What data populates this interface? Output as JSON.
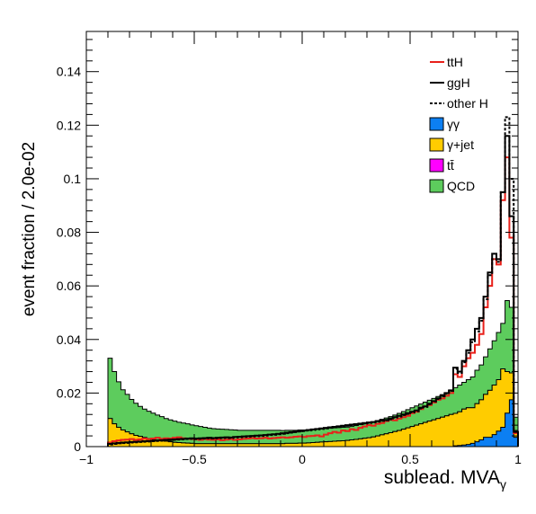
{
  "chart_data": {
    "type": "histogram",
    "xlabel": "sublead. MVA",
    "xlabel_sub": "γ",
    "ylabel": "event fraction / 2.0e-02",
    "xlim": [
      -1,
      1
    ],
    "ylim": [
      0,
      0.155
    ],
    "x_ticks": [
      {
        "v": -1,
        "label": "−1"
      },
      {
        "v": -0.5,
        "label": "−0.5"
      },
      {
        "v": 0,
        "label": "0"
      },
      {
        "v": 0.5,
        "label": "0.5"
      },
      {
        "v": 1,
        "label": "1"
      }
    ],
    "y_ticks": [
      {
        "v": 0,
        "label": "0"
      },
      {
        "v": 0.02,
        "label": "0.02"
      },
      {
        "v": 0.04,
        "label": "0.04"
      },
      {
        "v": 0.06,
        "label": "0.06"
      },
      {
        "v": 0.08,
        "label": "0.08"
      },
      {
        "v": 0.1,
        "label": "0.1"
      },
      {
        "v": 0.12,
        "label": "0.12"
      },
      {
        "v": 0.14,
        "label": "0.14"
      }
    ],
    "bin_width": 0.02,
    "x_start": -0.9,
    "stacked": [
      {
        "name": "γγ",
        "color": "#0c7ff2",
        "values": [
          0,
          0,
          0,
          0,
          0,
          0,
          0,
          0,
          0,
          0,
          0,
          0,
          0,
          0,
          0,
          0,
          0,
          0,
          0,
          0,
          0,
          0,
          0,
          0,
          0,
          0,
          0,
          0,
          0,
          0,
          0,
          0,
          0,
          0,
          0,
          0,
          0,
          0,
          0,
          0,
          0,
          0,
          0,
          0,
          0,
          0,
          0,
          0,
          0,
          0,
          0,
          0,
          0,
          0,
          0,
          0,
          0,
          0,
          0,
          0,
          0,
          0,
          0,
          0,
          0,
          0,
          0,
          0,
          0,
          0,
          0,
          0,
          0,
          0,
          0,
          0,
          0,
          0,
          0,
          0,
          0.0003,
          0.0004,
          0.0006,
          0.0008,
          0.0012,
          0.0018,
          0.0025,
          0.0035,
          0.0035,
          0.0045,
          0.0058,
          0.0072,
          0.0125,
          0.0175,
          0.0035
        ]
      },
      {
        "name": "γ+jet",
        "color": "#ffcc00",
        "values": [
          0.0105,
          0.0085,
          0.0072,
          0.0062,
          0.0055,
          0.0048,
          0.0042,
          0.0038,
          0.0034,
          0.003,
          0.0027,
          0.0024,
          0.0022,
          0.002,
          0.0018,
          0.0016,
          0.0015,
          0.0014,
          0.0013,
          0.0012,
          0.0011,
          0.0011,
          0.0011,
          0.0011,
          0.0011,
          0.0011,
          0.0011,
          0.0011,
          0.0011,
          0.0011,
          0.0011,
          0.0011,
          0.0011,
          0.0011,
          0.0011,
          0.0011,
          0.0011,
          0.0011,
          0.0011,
          0.0011,
          0.0011,
          0.0012,
          0.0012,
          0.0012,
          0.0013,
          0.0013,
          0.0014,
          0.0015,
          0.0016,
          0.0017,
          0.0018,
          0.0019,
          0.002,
          0.0021,
          0.0022,
          0.0023,
          0.0025,
          0.0027,
          0.0029,
          0.0031,
          0.0033,
          0.0036,
          0.004,
          0.0044,
          0.0048,
          0.0052,
          0.0056,
          0.006,
          0.0065,
          0.007,
          0.0075,
          0.008,
          0.0085,
          0.009,
          0.0095,
          0.01,
          0.0105,
          0.011,
          0.0115,
          0.012,
          0.0121,
          0.0126,
          0.0134,
          0.0137,
          0.0133,
          0.0142,
          0.015,
          0.016,
          0.0175,
          0.0185,
          0.0192,
          0.0218,
          0.0155,
          0.01,
          0.0025
        ]
      },
      {
        "name": "tt̄",
        "color": "#ff00ff",
        "values": [
          0,
          0,
          0,
          0,
          0,
          0,
          0,
          0,
          0,
          0,
          0,
          0,
          0,
          0,
          0,
          0,
          0,
          0,
          0,
          0,
          0,
          0,
          0,
          0,
          0,
          0,
          0,
          0,
          0,
          0,
          0,
          0,
          0,
          0,
          0,
          0,
          0,
          0,
          0,
          0,
          0,
          0,
          0,
          0,
          0,
          0,
          0,
          0,
          0,
          0,
          0,
          0,
          0,
          0,
          0,
          0,
          0,
          0,
          0,
          0,
          0,
          0,
          0,
          0,
          0,
          0,
          0,
          0,
          0,
          0,
          0,
          0,
          0,
          0,
          0,
          0,
          0,
          0,
          0,
          0,
          0,
          0,
          0,
          0,
          0,
          0,
          0,
          0,
          0,
          0,
          0,
          0,
          0,
          0,
          0
        ]
      },
      {
        "name": "QCD",
        "color": "#5dcc5d",
        "values": [
          0.0225,
          0.0195,
          0.017,
          0.015,
          0.014,
          0.0128,
          0.012,
          0.0112,
          0.0106,
          0.0102,
          0.0098,
          0.0094,
          0.009,
          0.0085,
          0.0082,
          0.0079,
          0.0076,
          0.0074,
          0.0072,
          0.0069,
          0.0067,
          0.0064,
          0.0061,
          0.0058,
          0.0056,
          0.0055,
          0.0054,
          0.0053,
          0.0052,
          0.0051,
          0.005,
          0.005,
          0.005,
          0.005,
          0.005,
          0.005,
          0.005,
          0.005,
          0.005,
          0.005,
          0.0049,
          0.0049,
          0.0049,
          0.0049,
          0.0049,
          0.0049,
          0.0049,
          0.0049,
          0.0049,
          0.0049,
          0.0049,
          0.005,
          0.005,
          0.005,
          0.005,
          0.005,
          0.0051,
          0.0052,
          0.0053,
          0.0054,
          0.0055,
          0.0056,
          0.0057,
          0.0058,
          0.0059,
          0.006,
          0.0062,
          0.0064,
          0.0066,
          0.0068,
          0.007,
          0.0072,
          0.0074,
          0.0076,
          0.0078,
          0.008,
          0.0082,
          0.0084,
          0.0086,
          0.0088,
          0.0096,
          0.01,
          0.01,
          0.0105,
          0.0115,
          0.0125,
          0.013,
          0.014,
          0.0155,
          0.0165,
          0.0176,
          0.017,
          0.0265,
          0.0245,
          0.005
        ]
      }
    ],
    "lines": [
      {
        "name": "ttH",
        "color": "#e8201a",
        "dash": "solid",
        "values": [
          0.0015,
          0.002,
          0.0023,
          0.0025,
          0.0026,
          0.0028,
          0.0025,
          0.0027,
          0.003,
          0.0028,
          0.003,
          0.0033,
          0.0029,
          0.0031,
          0.003,
          0.0033,
          0.0035,
          0.0031,
          0.003,
          0.0028,
          0.0027,
          0.0025,
          0.0028,
          0.0026,
          0.0025,
          0.0027,
          0.0024,
          0.0026,
          0.0028,
          0.0025,
          0.0027,
          0.0029,
          0.003,
          0.0032,
          0.003,
          0.0031,
          0.0033,
          0.003,
          0.0032,
          0.0033,
          0.0035,
          0.0033,
          0.0035,
          0.0037,
          0.0038,
          0.0036,
          0.0039,
          0.004,
          0.0042,
          0.0038,
          0.0045,
          0.005,
          0.0055,
          0.0052,
          0.006,
          0.0058,
          0.0065,
          0.0062,
          0.007,
          0.0075,
          0.008,
          0.0078,
          0.0085,
          0.0088,
          0.0095,
          0.01,
          0.0098,
          0.0105,
          0.011,
          0.0115,
          0.0125,
          0.013,
          0.014,
          0.015,
          0.0155,
          0.0165,
          0.0175,
          0.018,
          0.019,
          0.02,
          0.027,
          0.026,
          0.03,
          0.033,
          0.035,
          0.038,
          0.042,
          0.052,
          0.06,
          0.07,
          0.068,
          0.092,
          0.108,
          0.078,
          0.005
        ]
      },
      {
        "name": "ggH",
        "color": "#000000",
        "dash": "solid",
        "values": [
          0.001,
          0.0012,
          0.0014,
          0.0015,
          0.0016,
          0.0017,
          0.0018,
          0.0019,
          0.002,
          0.0021,
          0.0022,
          0.0023,
          0.0024,
          0.0025,
          0.0026,
          0.0027,
          0.0028,
          0.0029,
          0.003,
          0.0031,
          0.003,
          0.0031,
          0.0032,
          0.0033,
          0.0032,
          0.0033,
          0.0034,
          0.0035,
          0.0034,
          0.0036,
          0.0037,
          0.0038,
          0.0039,
          0.004,
          0.0041,
          0.0042,
          0.0043,
          0.0045,
          0.0046,
          0.0048,
          0.005,
          0.0052,
          0.0054,
          0.0056,
          0.0058,
          0.006,
          0.0062,
          0.0064,
          0.0066,
          0.0068,
          0.007,
          0.0072,
          0.0074,
          0.0076,
          0.0078,
          0.008,
          0.0082,
          0.0084,
          0.0086,
          0.0088,
          0.009,
          0.0092,
          0.0095,
          0.0098,
          0.01,
          0.0105,
          0.011,
          0.0115,
          0.012,
          0.0125,
          0.013,
          0.0135,
          0.0145,
          0.015,
          0.016,
          0.017,
          0.018,
          0.019,
          0.02,
          0.021,
          0.0295,
          0.028,
          0.032,
          0.036,
          0.04,
          0.044,
          0.048,
          0.056,
          0.065,
          0.072,
          0.07,
          0.095,
          0.116,
          0.086,
          0.0055
        ]
      },
      {
        "name": "other H",
        "color": "#000000",
        "dash": "dotted",
        "values": [
          0.0008,
          0.001,
          0.0012,
          0.0013,
          0.0014,
          0.0015,
          0.0016,
          0.0017,
          0.0018,
          0.0019,
          0.002,
          0.0021,
          0.0022,
          0.0023,
          0.0024,
          0.0025,
          0.0026,
          0.0027,
          0.0028,
          0.0029,
          0.0028,
          0.0029,
          0.003,
          0.0031,
          0.003,
          0.0031,
          0.0032,
          0.0033,
          0.0032,
          0.0034,
          0.0035,
          0.0036,
          0.0037,
          0.0038,
          0.0039,
          0.004,
          0.0041,
          0.0043,
          0.0044,
          0.0046,
          0.0048,
          0.005,
          0.0052,
          0.0054,
          0.0056,
          0.0058,
          0.006,
          0.0062,
          0.0064,
          0.0066,
          0.0068,
          0.007,
          0.0072,
          0.0074,
          0.0076,
          0.0078,
          0.008,
          0.0082,
          0.0084,
          0.0086,
          0.0088,
          0.009,
          0.0093,
          0.0096,
          0.0098,
          0.0102,
          0.0108,
          0.0112,
          0.0118,
          0.0122,
          0.0128,
          0.0132,
          0.0142,
          0.0148,
          0.0158,
          0.0168,
          0.0178,
          0.0188,
          0.0198,
          0.0208,
          0.029,
          0.0275,
          0.0315,
          0.035,
          0.039,
          0.043,
          0.047,
          0.055,
          0.064,
          0.07,
          0.069,
          0.095,
          0.123,
          0.1,
          0.0055
        ]
      }
    ],
    "legend_position": "top-right"
  }
}
